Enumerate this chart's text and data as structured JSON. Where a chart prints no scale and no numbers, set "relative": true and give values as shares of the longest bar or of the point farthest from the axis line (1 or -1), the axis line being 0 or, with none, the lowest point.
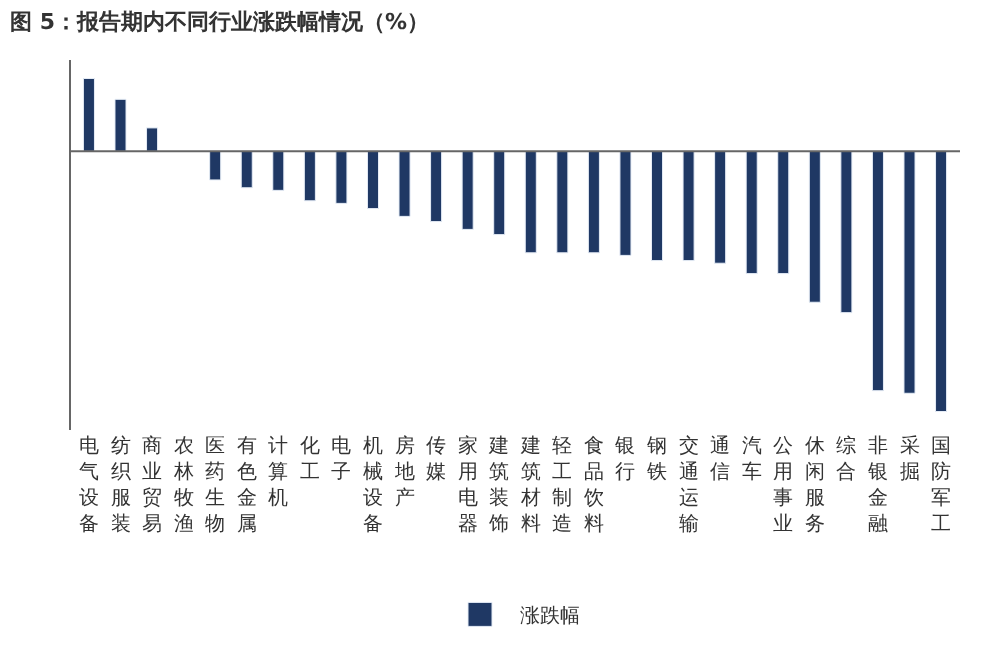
{
  "chart_data": {
    "type": "bar",
    "title": "图 5：报告期内不同行业涨跌幅情况（%）",
    "relative": true,
    "categories": [
      "电气设备",
      "纺织服装",
      "商业贸易",
      "农林牧渔",
      "医药生物",
      "有色金属",
      "计算机",
      "化工",
      "电子",
      "机械设备",
      "房地产",
      "传媒",
      "家用电器",
      "建筑装饰",
      "建筑材料",
      "轻工制造",
      "食品饮料",
      "银行",
      "钢铁",
      "交通运输",
      "通信",
      "汽车",
      "公用事业",
      "休闲服务",
      "综合",
      "非银金融",
      "采掘",
      "国防军工"
    ],
    "series": [
      {
        "name": "涨跌幅",
        "color": "#1f3864",
        "values": [
          0.28,
          0.2,
          0.09,
          null,
          -0.11,
          -0.14,
          -0.15,
          -0.19,
          -0.2,
          -0.22,
          -0.25,
          -0.27,
          -0.3,
          -0.32,
          -0.39,
          -0.39,
          -0.39,
          -0.4,
          -0.42,
          -0.42,
          -0.43,
          -0.47,
          -0.47,
          -0.58,
          -0.62,
          -0.92,
          -0.93,
          -1
        ]
      }
    ],
    "legend": "bottom"
  }
}
